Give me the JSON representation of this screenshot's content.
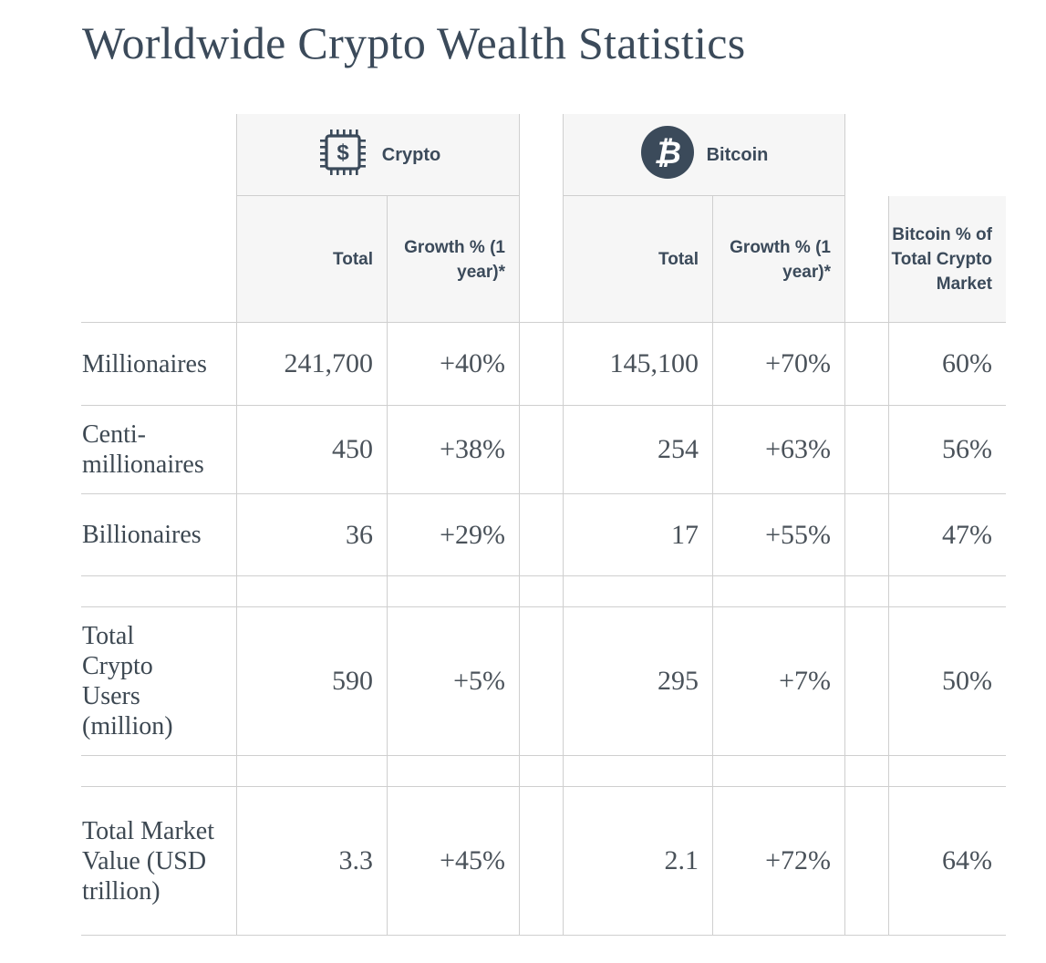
{
  "title": "Worldwide Crypto Wealth Statistics",
  "groups": {
    "crypto": {
      "label": "Crypto",
      "icon": "chip-dollar-icon"
    },
    "bitcoin": {
      "label": "Bitcoin",
      "icon": "bitcoin-icon",
      "icon_glyph": "₿"
    }
  },
  "icon_glyphs": {
    "dollar": "$"
  },
  "columns": {
    "crypto_total": "Total",
    "crypto_growth": "Growth % (1 year)*",
    "bitcoin_total": "Total",
    "bitcoin_growth": "Growth % (1 year)*",
    "bitcoin_share": "Bitcoin % of Total Crypto Market"
  },
  "rows": [
    {
      "label": "Millionaires",
      "crypto_total": "241,700",
      "crypto_growth": "+40%",
      "bitcoin_total": "145,100",
      "bitcoin_growth": "+70%",
      "bitcoin_share": "60%"
    },
    {
      "label": "Centi-millionaires",
      "crypto_total": "450",
      "crypto_growth": "+38%",
      "bitcoin_total": "254",
      "bitcoin_growth": "+63%",
      "bitcoin_share": "56%"
    },
    {
      "label": "Billionaires",
      "crypto_total": "36",
      "crypto_growth": "+29%",
      "bitcoin_total": "17",
      "bitcoin_growth": "+55%",
      "bitcoin_share": "47%"
    },
    {
      "label": "Total Crypto Users (million)",
      "crypto_total": "590",
      "crypto_growth": "+5%",
      "bitcoin_total": "295",
      "bitcoin_growth": "+7%",
      "bitcoin_share": "50%"
    },
    {
      "label": "Total Market Value (USD trillion)",
      "crypto_total": "3.3",
      "crypto_growth": "+45%",
      "bitcoin_total": "2.1",
      "bitcoin_growth": "+72%",
      "bitcoin_share": "64%"
    }
  ],
  "colors": {
    "heading": "#3b4a5a",
    "header_bg": "#f6f6f6",
    "grid": "#cfcfcf",
    "icon_fill": "#3b4a5a"
  }
}
